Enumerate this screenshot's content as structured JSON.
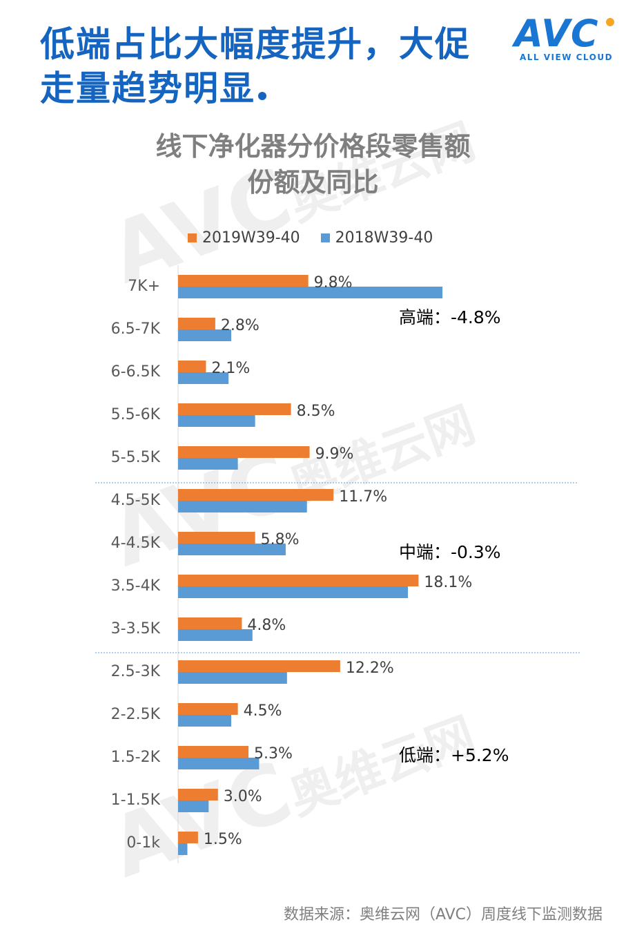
{
  "headline": {
    "line1": "低端占比大幅度提升，大促",
    "line2": "走量趋势明显"
  },
  "logo": {
    "text": "AVC",
    "subtitle": "ALL VIEW CLOUD"
  },
  "watermark": {
    "cn": "奥维云网",
    "en": "ALL VIEW CLOUD",
    "mark": "AVC"
  },
  "chart_data": {
    "type": "bar",
    "orientation": "horizontal",
    "title_line1": "线下净化器分价格段零售额",
    "title_line2": "份额及同比",
    "categories": [
      "7K+",
      "6.5-7K",
      "6-6.5K",
      "5.5-6K",
      "5-5.5K",
      "4.5-5K",
      "4-4.5K",
      "3.5-4K",
      "3-3.5K",
      "2.5-3K",
      "2-2.5K",
      "1.5-2K",
      "1-1.5K",
      "0-1k"
    ],
    "series": [
      {
        "name": "2019W39-40",
        "color": "#ed7d31",
        "values": [
          9.8,
          2.8,
          2.1,
          8.5,
          9.9,
          11.7,
          5.8,
          18.1,
          4.8,
          12.2,
          4.5,
          5.3,
          3.0,
          1.5
        ],
        "labels": [
          "9.8%",
          "2.8%",
          "2.1%",
          "8.5%",
          "9.9%",
          "11.7%",
          "5.8%",
          "18.1%",
          "4.8%",
          "12.2%",
          "4.5%",
          "5.3%",
          "3.0%",
          "1.5%"
        ]
      },
      {
        "name": "2018W39-40",
        "color": "#5b9bd5",
        "values": [
          19.9,
          4.0,
          3.8,
          5.8,
          4.5,
          9.7,
          8.1,
          17.3,
          5.6,
          8.2,
          4.0,
          6.1,
          2.3,
          0.7
        ]
      }
    ],
    "xlim": [
      0,
      20
    ],
    "legend_position": "top",
    "segments": [
      {
        "label": "高端：-4.8%",
        "from": "7K+",
        "to": "5-5.5K"
      },
      {
        "label": "中端：-0.3%",
        "from": "4.5-5K",
        "to": "3-3.5K"
      },
      {
        "label": "低端：+5.2%",
        "from": "2.5-3K",
        "to": "0-1k"
      }
    ]
  },
  "source": "数据来源：奥维云网（AVC）周度线下监测数据"
}
